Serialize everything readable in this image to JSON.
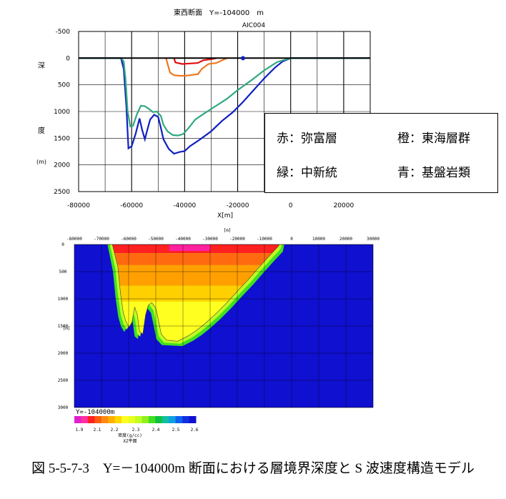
{
  "chart_data": [
    {
      "type": "line",
      "title": "東西断面　Y=-104000　m",
      "subtitle": "AIC004",
      "xlabel": "X[m]",
      "ylabel": [
        "深",
        "度",
        "(m)"
      ],
      "xlim": [
        -80000,
        30000
      ],
      "ylim": [
        2500,
        -500
      ],
      "x_ticks": [
        "-80000",
        "-60000",
        "-40000",
        "-20000",
        "0",
        "20000"
      ],
      "y_ticks": [
        "-500",
        "0",
        "500",
        "1000",
        "1500",
        "2000",
        "2500"
      ],
      "grid": true,
      "legend": [
        {
          "text": "赤：弥富層",
          "color": "#e01010"
        },
        {
          "text": "橙：東海層群",
          "color": "#f07820"
        },
        {
          "text": "緑：中新統",
          "color": "#30a880"
        },
        {
          "text": "青：基盤岩類",
          "color": "#1020c0"
        }
      ],
      "series": [
        {
          "color": "#1020c0",
          "points": [
            [
              -80000,
              0
            ],
            [
              -64000,
              0
            ],
            [
              -63000,
              200
            ],
            [
              -62000,
              900
            ],
            [
              -61200,
              1690
            ],
            [
              -60000,
              1650
            ],
            [
              -58500,
              1420
            ],
            [
              -57000,
              1130
            ],
            [
              -56000,
              1350
            ],
            [
              -55000,
              1520
            ],
            [
              -54000,
              1330
            ],
            [
              -53000,
              1150
            ],
            [
              -51500,
              1060
            ],
            [
              -50000,
              1100
            ],
            [
              -49000,
              1300
            ],
            [
              -48000,
              1520
            ],
            [
              -46000,
              1700
            ],
            [
              -44000,
              1790
            ],
            [
              -42000,
              1760
            ],
            [
              -40000,
              1740
            ],
            [
              -38000,
              1650
            ],
            [
              -35000,
              1550
            ],
            [
              -33000,
              1480
            ],
            [
              -30000,
              1370
            ],
            [
              -26000,
              1180
            ],
            [
              -22000,
              1020
            ],
            [
              -18000,
              820
            ],
            [
              -14000,
              600
            ],
            [
              -10000,
              380
            ],
            [
              -6000,
              180
            ],
            [
              -3000,
              60
            ],
            [
              0,
              0
            ],
            [
              30000,
              0
            ]
          ]
        },
        {
          "color": "#30a880",
          "points": [
            [
              -80000,
              0
            ],
            [
              -64000,
              0
            ],
            [
              -63000,
              60
            ],
            [
              -62300,
              400
            ],
            [
              -61500,
              1000
            ],
            [
              -60500,
              1280
            ],
            [
              -59500,
              1270
            ],
            [
              -58000,
              1050
            ],
            [
              -56500,
              890
            ],
            [
              -55000,
              900
            ],
            [
              -53500,
              950
            ],
            [
              -52000,
              1010
            ],
            [
              -50500,
              1000
            ],
            [
              -49000,
              1080
            ],
            [
              -48000,
              1250
            ],
            [
              -46500,
              1370
            ],
            [
              -44500,
              1440
            ],
            [
              -42500,
              1450
            ],
            [
              -40500,
              1420
            ],
            [
              -38500,
              1310
            ],
            [
              -36000,
              1150
            ],
            [
              -33000,
              1050
            ],
            [
              -29000,
              920
            ],
            [
              -24000,
              760
            ],
            [
              -20000,
              600
            ],
            [
              -15000,
              420
            ],
            [
              -10000,
              230
            ],
            [
              -5000,
              70
            ],
            [
              0,
              0
            ],
            [
              30000,
              0
            ]
          ]
        },
        {
          "color": "#f07820",
          "points": [
            [
              -47000,
              0
            ],
            [
              -46500,
              100
            ],
            [
              -45500,
              270
            ],
            [
              -44000,
              320
            ],
            [
              -42000,
              330
            ],
            [
              -40000,
              330
            ],
            [
              -38000,
              320
            ],
            [
              -35000,
              300
            ],
            [
              -33500,
              200
            ],
            [
              -31000,
              110
            ],
            [
              -28000,
              90
            ],
            [
              -25000,
              20
            ],
            [
              -24000,
              0
            ]
          ]
        },
        {
          "color": "#e01010",
          "points": [
            [
              -44000,
              0
            ],
            [
              -43500,
              80
            ],
            [
              -41000,
              110
            ],
            [
              -38000,
              100
            ],
            [
              -35000,
              90
            ],
            [
              -33000,
              40
            ],
            [
              -30000,
              20
            ],
            [
              -28000,
              0
            ]
          ]
        },
        {
          "color": "#000000",
          "points": [
            [
              -80000,
              0
            ],
            [
              30000,
              0
            ]
          ]
        }
      ],
      "marker": {
        "x": -18000,
        "y": 0,
        "color": "#1020c0"
      }
    },
    {
      "type": "heatmap",
      "title": "",
      "x_ticks": [
        "-80000",
        "-70000",
        "-60000",
        "-50000",
        "-40000",
        "-30000",
        "-20000",
        "-10000",
        "0",
        "10000",
        "20000",
        "30000"
      ],
      "x_unit": "[m]",
      "y_ticks": [
        "0",
        "500",
        "1000",
        "1500",
        "2000",
        "2500",
        "3000"
      ],
      "y_unit": "[m]",
      "xlim": [
        -80000,
        30000
      ],
      "ylim": [
        0,
        3000
      ],
      "colorbar_label": "Y=-104000m",
      "colorbar_ticks": [
        "1.9",
        "2.1",
        "2.2",
        "2.3",
        "2.4",
        "2.5",
        "2.6"
      ],
      "colorbar_title": "密度(g/cc)",
      "colorbar_sub": "XZ平面",
      "colorbar_colors": [
        "#e020d0",
        "#ff30a0",
        "#ff2020",
        "#ff5a10",
        "#ff8a10",
        "#ffb000",
        "#ffd800",
        "#ffff20",
        "#e8ff20",
        "#c0ff20",
        "#90f020",
        "#40e020",
        "#10c040",
        "#10c0a0",
        "#10a0e0",
        "#1060f0",
        "#1030e0",
        "#1010d0"
      ],
      "background": "#1010d0",
      "basin_bottom": [
        [
          -66000,
          0
        ],
        [
          -64000,
          400
        ],
        [
          -63000,
          900
        ],
        [
          -62000,
          1250
        ],
        [
          -61000,
          1420
        ],
        [
          -59800,
          1520
        ],
        [
          -58800,
          1430
        ],
        [
          -57800,
          1150
        ],
        [
          -56800,
          1300
        ],
        [
          -56000,
          1600
        ],
        [
          -54800,
          1650
        ],
        [
          -53800,
          1300
        ],
        [
          -52800,
          1120
        ],
        [
          -51500,
          1070
        ],
        [
          -50000,
          1170
        ],
        [
          -49000,
          1400
        ],
        [
          -48000,
          1650
        ],
        [
          -46000,
          1760
        ],
        [
          -42000,
          1780
        ],
        [
          -38000,
          1680
        ],
        [
          -35000,
          1580
        ],
        [
          -32000,
          1460
        ],
        [
          -28000,
          1280
        ],
        [
          -24000,
          1080
        ],
        [
          -20000,
          860
        ],
        [
          -16000,
          650
        ],
        [
          -12000,
          420
        ],
        [
          -8000,
          200
        ],
        [
          -5000,
          40
        ],
        [
          -4500,
          0
        ]
      ],
      "density_layers": [
        {
          "color": "#ff20a0",
          "top": 0,
          "bottom": 120,
          "x0": -45000,
          "x1": -30000
        },
        {
          "color": "#ff2020",
          "top": 0,
          "bottom": 160
        },
        {
          "color": "#ff6a10",
          "top": 160,
          "bottom": 380
        },
        {
          "color": "#ffa000",
          "top": 380,
          "bottom": 760
        },
        {
          "color": "#ffd000",
          "top": 760,
          "bottom": 1050
        },
        {
          "color": "#ffff20",
          "top": 1050,
          "bottom": 3000
        },
        {
          "color": "#c0ff20",
          "edge": true
        },
        {
          "color": "#40e020",
          "edge": true
        }
      ]
    }
  ],
  "caption": "図 5-5-7-3　Y=－104000m 断面における層境界深度と S 波速度構造モデル"
}
